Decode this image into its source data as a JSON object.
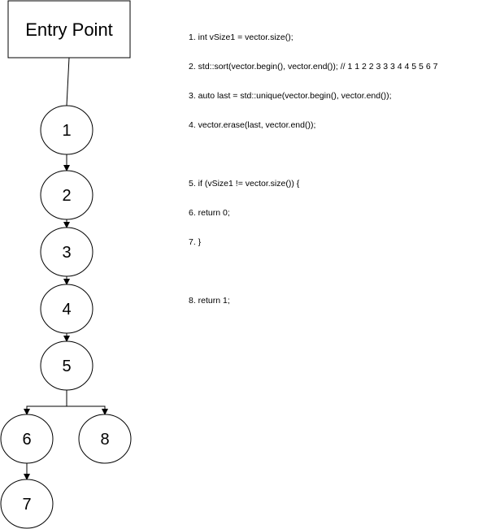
{
  "entry": {
    "label": "Entry Point"
  },
  "nodes": [
    {
      "id": "1",
      "label": "1"
    },
    {
      "id": "2",
      "label": "2"
    },
    {
      "id": "3",
      "label": "3"
    },
    {
      "id": "4",
      "label": "4"
    },
    {
      "id": "5",
      "label": "5"
    },
    {
      "id": "6",
      "label": "6"
    },
    {
      "id": "8",
      "label": "8"
    },
    {
      "id": "7",
      "label": "7"
    }
  ],
  "edges": [
    {
      "from": "entry",
      "to": "1",
      "arrow": false
    },
    {
      "from": "1",
      "to": "2",
      "arrow": true
    },
    {
      "from": "2",
      "to": "3",
      "arrow": true
    },
    {
      "from": "3",
      "to": "4",
      "arrow": true
    },
    {
      "from": "4",
      "to": "5",
      "arrow": true
    },
    {
      "from": "5",
      "to": "6",
      "arrow": true
    },
    {
      "from": "5",
      "to": "8",
      "arrow": true
    },
    {
      "from": "6",
      "to": "7",
      "arrow": true
    }
  ],
  "code_lines": [
    "1. int vSize1 = vector.size();",
    "2. std::sort(vector.begin(), vector.end()); // 1 1 2 2 3 3 3 4 4 5 5 6 7",
    "3. auto last = std::unique(vector.begin(), vector.end());",
    "4. vector.erase(last, vector.end());",
    "",
    "5. if (vSize1 != vector.size()) {",
    "6. return 0;",
    "7. }",
    "",
    "8. return 1;"
  ]
}
